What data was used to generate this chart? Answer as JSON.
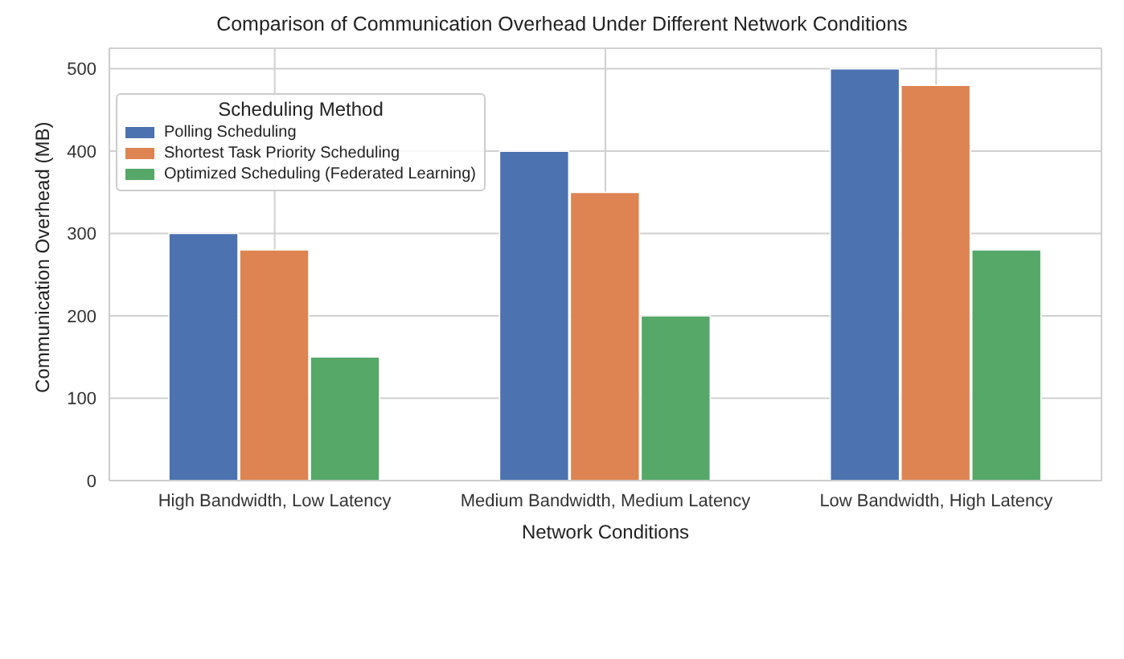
{
  "chart_data": {
    "type": "bar",
    "title": "Comparison of Communication Overhead Under Different Network Conditions",
    "xlabel": "Network Conditions",
    "ylabel": "Communication Overhead (MB)",
    "legend_title": "Scheduling Method",
    "categories": [
      "High Bandwidth, Low Latency",
      "Medium Bandwidth, Medium Latency",
      "Low Bandwidth, High Latency"
    ],
    "series": [
      {
        "name": "Polling Scheduling",
        "color": "#4c72b0",
        "values": [
          300,
          400,
          500
        ]
      },
      {
        "name": "Shortest Task Priority Scheduling",
        "color": "#dd8452",
        "values": [
          280,
          350,
          480
        ]
      },
      {
        "name": "Optimized Scheduling (Federated Learning)",
        "color": "#55a868",
        "values": [
          150,
          200,
          280
        ]
      }
    ],
    "ylim": [
      0,
      525
    ],
    "yticks": [
      0,
      100,
      200,
      300,
      400,
      500
    ],
    "grid": true,
    "legend": "top left"
  }
}
